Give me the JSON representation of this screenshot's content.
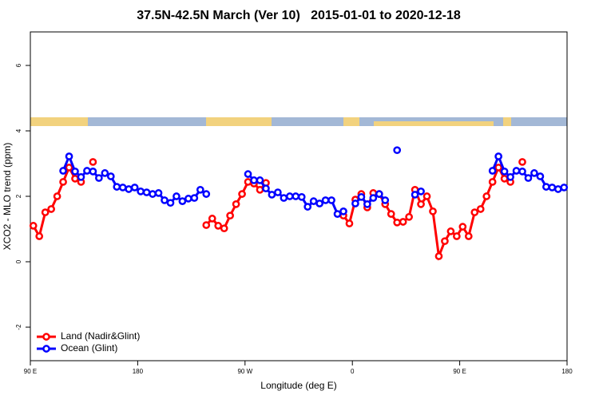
{
  "chart_data": {
    "type": "line",
    "title": "37.5N-42.5N March (Ver 10)   2015-01-01 to 2020-12-18",
    "x_label": "Longitude (deg E)",
    "y_label": "XCO2 - MLO trend (ppm)",
    "x": [
      92.5,
      97.5,
      102.5,
      107.5,
      112.5,
      117.5,
      122.5,
      127.5,
      132.5,
      137.5,
      142.5,
      147.5,
      152.5,
      157.5,
      162.5,
      167.5,
      172.5,
      177.5,
      182.5,
      187.5,
      192.5,
      197.5,
      202.5,
      207.5,
      212.5,
      217.5,
      222.5,
      227.5,
      232.5,
      237.5,
      242.5,
      247.5,
      252.5,
      257.5,
      262.5,
      267.5,
      272.5,
      277.5,
      282.5,
      287.5,
      292.5,
      297.5,
      302.5,
      307.5,
      312.5,
      317.5,
      322.5,
      327.5,
      332.5,
      337.5,
      342.5,
      347.5,
      352.5,
      357.5,
      362.5,
      367.5,
      372.5,
      377.5,
      382.5,
      387.5,
      392.5,
      397.5,
      402.5,
      407.5,
      412.5,
      417.5,
      422.5,
      427.5,
      432.5,
      437.5,
      442.5,
      447.5,
      452.5,
      457.5,
      462.5,
      467.5,
      472.5,
      477.5,
      482.5,
      487.5,
      492.5,
      497.5,
      502.5,
      507.5,
      512.5,
      517.5,
      522.5,
      527.5,
      532.5,
      537.5
    ],
    "series": [
      {
        "name": "Land (Nadir&Glint)",
        "color": "#ff0000",
        "values": [
          1.1,
          0.78,
          1.51,
          1.61,
          2.0,
          2.44,
          2.88,
          2.54,
          2.44,
          null,
          3.05,
          null,
          null,
          null,
          null,
          null,
          null,
          null,
          null,
          null,
          null,
          null,
          null,
          null,
          null,
          null,
          null,
          null,
          null,
          1.12,
          1.32,
          1.1,
          1.02,
          1.41,
          1.76,
          2.07,
          2.44,
          2.39,
          2.2,
          2.41,
          null,
          null,
          null,
          null,
          null,
          null,
          null,
          null,
          null,
          null,
          null,
          null,
          1.41,
          1.17,
          1.9,
          2.07,
          1.66,
          2.1,
          2.07,
          1.76,
          1.46,
          1.2,
          1.22,
          1.37,
          2.2,
          1.76,
          2.0,
          1.54,
          0.17,
          0.63,
          0.93,
          0.78,
          1.07,
          0.78,
          1.51,
          1.61,
          2.0,
          2.44,
          2.88,
          2.54,
          2.44,
          null,
          3.05,
          null,
          null,
          null,
          null,
          null,
          null,
          null
        ]
      },
      {
        "name": "Ocean (Glint)",
        "color": "#0000ff",
        "values": [
          null,
          null,
          null,
          null,
          null,
          2.78,
          3.22,
          2.76,
          2.59,
          2.78,
          2.76,
          2.56,
          2.71,
          2.61,
          2.29,
          2.27,
          2.22,
          2.27,
          2.15,
          2.12,
          2.07,
          2.1,
          1.88,
          1.8,
          2.0,
          1.85,
          1.93,
          1.95,
          2.2,
          2.07,
          null,
          null,
          null,
          null,
          null,
          null,
          2.68,
          2.49,
          2.49,
          2.24,
          2.05,
          2.12,
          1.95,
          2.0,
          2.0,
          1.98,
          1.68,
          1.85,
          1.78,
          1.88,
          1.88,
          1.46,
          1.54,
          null,
          1.78,
          1.98,
          1.76,
          1.95,
          2.07,
          1.88,
          null,
          3.41,
          null,
          null,
          2.05,
          2.15,
          null,
          null,
          null,
          null,
          null,
          null,
          null,
          null,
          null,
          null,
          null,
          2.78,
          3.22,
          2.76,
          2.59,
          2.78,
          2.76,
          2.56,
          2.71,
          2.61,
          2.29,
          2.27,
          2.22,
          2.27
        ]
      }
    ],
    "xlim": [
      90,
      540
    ],
    "xticks": [
      {
        "value": 90,
        "label": "90 E"
      },
      180,
      {
        "value": 270,
        "label": "90 W"
      },
      {
        "value": 360,
        "label": "0"
      },
      {
        "value": 450,
        "label": "90 E"
      },
      {
        "value": 540,
        "label": "180"
      }
    ],
    "ylim": [
      -3,
      7
    ],
    "yticks": [
      -2,
      0,
      2,
      4,
      6
    ],
    "legend_position": "bottom-left"
  }
}
